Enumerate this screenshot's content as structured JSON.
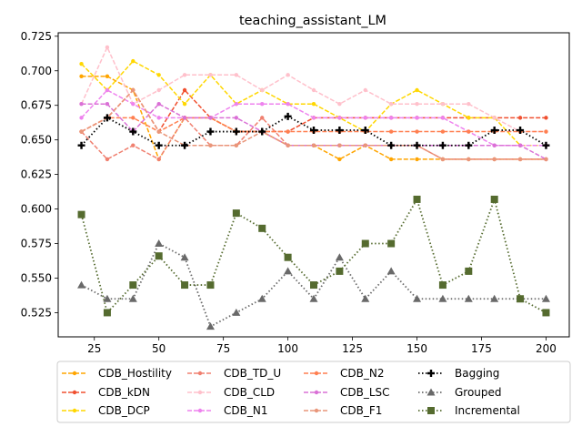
{
  "chart_data": {
    "type": "line",
    "title": "teaching_assistant_LM",
    "xlabel": "",
    "ylabel": "",
    "xlim": [
      11,
      209
    ],
    "ylim": [
      0.5075,
      0.7275
    ],
    "x_ticks": [
      25,
      50,
      75,
      100,
      125,
      150,
      175,
      200
    ],
    "y_ticks": [
      0.525,
      0.55,
      0.575,
      0.6,
      0.625,
      0.65,
      0.675,
      0.7,
      0.725
    ],
    "y_tick_labels": [
      "0.525",
      "0.550",
      "0.575",
      "0.600",
      "0.625",
      "0.650",
      "0.675",
      "0.700",
      "0.725"
    ],
    "grid": false,
    "legend_position": "below plot",
    "x": [
      20,
      30,
      40,
      50,
      60,
      70,
      80,
      90,
      100,
      110,
      120,
      130,
      140,
      150,
      160,
      170,
      180,
      190,
      200
    ],
    "series": [
      {
        "name": "CDB_Hostility",
        "color": "#ffa500",
        "style": "dashed",
        "marker": "circle",
        "values": [
          0.696,
          0.696,
          0.686,
          0.636,
          0.666,
          0.666,
          0.656,
          0.656,
          0.646,
          0.646,
          0.636,
          0.646,
          0.636,
          0.636,
          0.636,
          0.636,
          0.636,
          0.636,
          0.636
        ]
      },
      {
        "name": "CDB_kDN",
        "color": "#f05030",
        "style": "dashed",
        "marker": "circle",
        "values": [
          0.656,
          0.666,
          0.686,
          0.656,
          0.686,
          0.666,
          0.656,
          0.656,
          0.656,
          0.666,
          0.666,
          0.666,
          0.666,
          0.666,
          0.666,
          0.666,
          0.666,
          0.666,
          0.666
        ]
      },
      {
        "name": "CDB_DCP",
        "color": "#ffd700",
        "style": "dashed",
        "marker": "circle",
        "values": [
          0.705,
          0.686,
          0.707,
          0.697,
          0.676,
          0.697,
          0.676,
          0.686,
          0.676,
          0.676,
          0.666,
          0.656,
          0.676,
          0.686,
          0.676,
          0.666,
          0.666,
          0.646,
          0.646
        ]
      },
      {
        "name": "CDB_TD_U",
        "color": "#f08070",
        "style": "dashed",
        "marker": "circle",
        "values": [
          0.656,
          0.636,
          0.646,
          0.636,
          0.666,
          0.646,
          0.646,
          0.666,
          0.646,
          0.646,
          0.646,
          0.646,
          0.646,
          0.646,
          0.636,
          0.636,
          0.636,
          0.636,
          0.636
        ]
      },
      {
        "name": "CDB_CLD",
        "color": "#ffc0cb",
        "style": "dashed",
        "marker": "circle",
        "values": [
          0.676,
          0.717,
          0.676,
          0.686,
          0.697,
          0.697,
          0.697,
          0.686,
          0.697,
          0.686,
          0.676,
          0.686,
          0.676,
          0.676,
          0.676,
          0.676,
          0.666,
          0.656,
          0.656
        ]
      },
      {
        "name": "CDB_N1",
        "color": "#ee82ee",
        "style": "dashed",
        "marker": "circle",
        "values": [
          0.666,
          0.686,
          0.676,
          0.666,
          0.666,
          0.666,
          0.676,
          0.676,
          0.676,
          0.666,
          0.666,
          0.666,
          0.666,
          0.666,
          0.666,
          0.656,
          0.646,
          0.646,
          0.646
        ]
      },
      {
        "name": "CDB_N2",
        "color": "#ff7f50",
        "style": "dashed",
        "marker": "circle",
        "values": [
          0.656,
          0.666,
          0.666,
          0.656,
          0.666,
          0.666,
          0.656,
          0.656,
          0.656,
          0.656,
          0.656,
          0.656,
          0.656,
          0.656,
          0.656,
          0.656,
          0.656,
          0.656,
          0.656
        ]
      },
      {
        "name": "CDB_LSC",
        "color": "#da70d6",
        "style": "dashed",
        "marker": "circle",
        "values": [
          0.676,
          0.676,
          0.656,
          0.676,
          0.666,
          0.666,
          0.666,
          0.656,
          0.646,
          0.646,
          0.646,
          0.646,
          0.646,
          0.646,
          0.646,
          0.646,
          0.646,
          0.646,
          0.636
        ]
      },
      {
        "name": "CDB_F1",
        "color": "#e9967a",
        "style": "dashed",
        "marker": "circle",
        "values": [
          0.656,
          0.666,
          0.686,
          0.656,
          0.646,
          0.646,
          0.646,
          0.656,
          0.646,
          0.646,
          0.646,
          0.646,
          0.646,
          0.646,
          0.636,
          0.636,
          0.636,
          0.636,
          0.636
        ]
      },
      {
        "name": "Bagging",
        "color": "#000000",
        "style": "dotted",
        "marker": "plus",
        "values": [
          0.646,
          0.666,
          0.656,
          0.646,
          0.646,
          0.656,
          0.656,
          0.656,
          0.667,
          0.657,
          0.657,
          0.657,
          0.646,
          0.646,
          0.646,
          0.646,
          0.657,
          0.657,
          0.646
        ]
      },
      {
        "name": "Grouped",
        "color": "#696969",
        "style": "dotted",
        "marker": "triangle",
        "values": [
          0.545,
          0.535,
          0.535,
          0.575,
          0.565,
          0.515,
          0.525,
          0.535,
          0.555,
          0.535,
          0.565,
          0.535,
          0.555,
          0.535,
          0.535,
          0.535,
          0.535,
          0.535,
          0.535
        ]
      },
      {
        "name": "Incremental",
        "color": "#556b2f",
        "style": "dotted",
        "marker": "square",
        "values": [
          0.596,
          0.525,
          0.545,
          0.566,
          0.545,
          0.545,
          0.597,
          0.586,
          0.565,
          0.545,
          0.555,
          0.575,
          0.575,
          0.607,
          0.545,
          0.555,
          0.607,
          0.535,
          0.525
        ]
      }
    ]
  }
}
